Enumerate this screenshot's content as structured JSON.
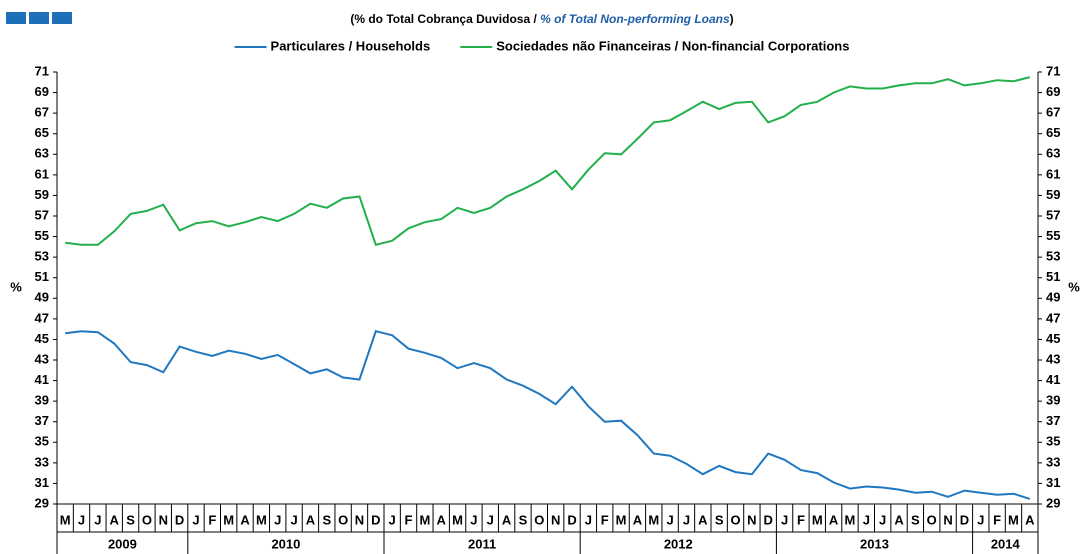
{
  "chart_data": {
    "type": "line",
    "subtitle": [
      "(% do Total Cobrança Duvidosa  / ",
      "% of Total Non-performing Loans",
      ")"
    ],
    "ylabel": "%",
    "y2label": "%",
    "categories": [
      "M",
      "J",
      "J",
      "A",
      "S",
      "O",
      "N",
      "D",
      "J",
      "F",
      "M",
      "A",
      "M",
      "J",
      "J",
      "A",
      "S",
      "O",
      "N",
      "D",
      "J",
      "F",
      "M",
      "A",
      "M",
      "J",
      "J",
      "A",
      "S",
      "O",
      "N",
      "D",
      "J",
      "F",
      "M",
      "A",
      "M",
      "J",
      "J",
      "A",
      "S",
      "O",
      "N",
      "D",
      "J",
      "F",
      "M",
      "A",
      "M",
      "J",
      "J",
      "A",
      "S",
      "O",
      "N",
      "D",
      "J",
      "F",
      "M",
      "A"
    ],
    "years": [
      "2009",
      "2010",
      "2011",
      "2012",
      "2013",
      "2014"
    ],
    "series": [
      {
        "name": "Particulares / Households",
        "color": "#2178c0",
        "values": [
          45.6,
          45.8,
          45.7,
          44.6,
          42.8,
          42.5,
          41.8,
          44.3,
          43.8,
          43.4,
          43.9,
          43.6,
          43.1,
          43.5,
          42.6,
          41.7,
          42.1,
          41.3,
          41.1,
          45.8,
          45.4,
          44.1,
          43.7,
          43.2,
          42.2,
          42.7,
          42.2,
          41.1,
          40.5,
          39.7,
          38.7,
          40.4,
          38.5,
          37.0,
          37.1,
          35.7,
          33.9,
          33.7,
          32.9,
          31.9,
          32.7,
          32.1,
          31.9,
          33.9,
          33.3,
          32.3,
          32.0,
          31.1,
          30.5,
          30.7,
          30.6,
          30.4,
          30.1,
          30.2,
          29.7,
          30.3,
          30.1,
          29.9,
          30.0,
          29.5
        ]
      },
      {
        "name": "Sociedades não Financeiras / Non-financial Corporations",
        "color": "#22b04b",
        "values": [
          54.4,
          54.2,
          54.2,
          55.5,
          57.2,
          57.5,
          58.1,
          55.6,
          56.3,
          56.5,
          56.0,
          56.4,
          56.9,
          56.5,
          57.2,
          58.2,
          57.8,
          58.7,
          58.9,
          54.2,
          54.6,
          55.8,
          56.4,
          56.7,
          57.8,
          57.3,
          57.8,
          58.9,
          59.6,
          60.4,
          61.4,
          59.6,
          61.5,
          63.1,
          63.0,
          64.5,
          66.1,
          66.3,
          67.2,
          68.1,
          67.4,
          68.0,
          68.1,
          66.1,
          66.7,
          67.8,
          68.1,
          69.0,
          69.6,
          69.4,
          69.4,
          69.7,
          69.9,
          69.9,
          70.3,
          69.7,
          69.9,
          70.2,
          70.1,
          70.5
        ]
      }
    ],
    "ylim": [
      29,
      71
    ],
    "yticks": [
      29,
      31,
      33,
      35,
      37,
      39,
      41,
      43,
      45,
      47,
      49,
      51,
      53,
      55,
      57,
      59,
      61,
      63,
      65,
      67,
      69,
      71
    ],
    "y2lim": [
      29,
      71
    ],
    "y2ticks": [
      29,
      31,
      33,
      35,
      37,
      39,
      41,
      43,
      45,
      47,
      49,
      51,
      53,
      55,
      57,
      59,
      61,
      63,
      65,
      67,
      69,
      71
    ],
    "legend": "top"
  }
}
